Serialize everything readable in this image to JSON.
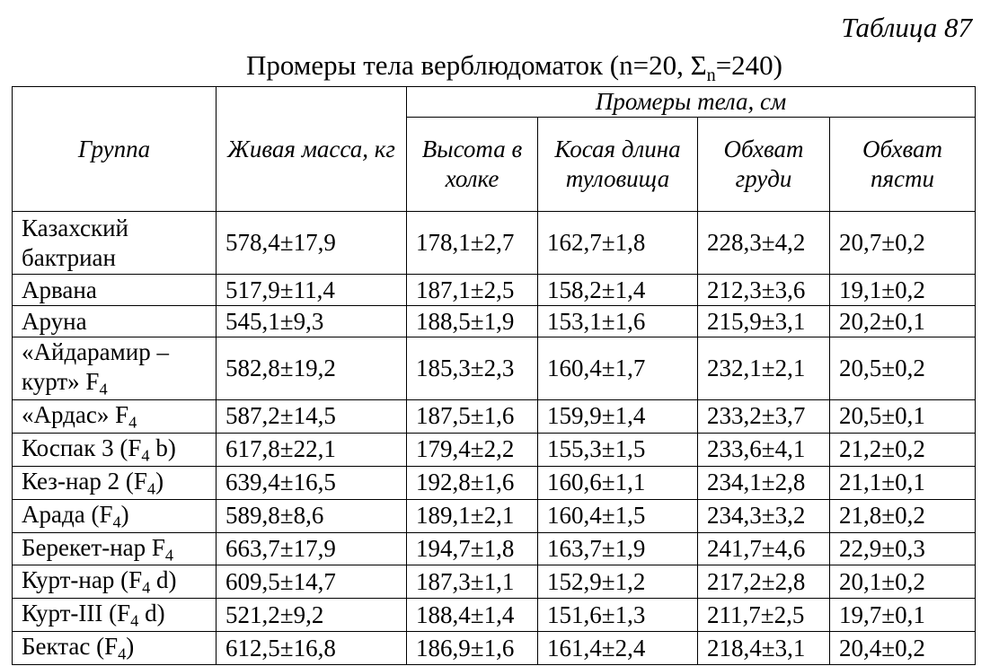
{
  "table_number": "Таблица 87",
  "title": {
    "text": "Промеры тела верблюдоматок (n=20, Σ",
    "sub": "n",
    "tail": "=240)"
  },
  "header": {
    "group": "Группа",
    "mass": "Живая масса, кг",
    "measures": "Промеры тела, см",
    "height": "Высота в холке",
    "length": "Косая длина туловища",
    "chest": "Обхват груди",
    "pastern": "Обхват пясти"
  },
  "rows": [
    {
      "group": "Казахский бактриан",
      "sub": "",
      "tail": "",
      "mass": "578,4±17,9",
      "height": "178,1±2,7",
      "length": "162,7±1,8",
      "chest": "228,3±4,2",
      "pastern": "20,7±0,2"
    },
    {
      "group": "Арвана",
      "sub": "",
      "tail": "",
      "mass": "517,9±11,4",
      "height": "187,1±2,5",
      "length": "158,2±1,4",
      "chest": "212,3±3,6",
      "pastern": "19,1±0,2"
    },
    {
      "group": "Аруна",
      "sub": "",
      "tail": "",
      "mass": "545,1±9,3",
      "height": "188,5±1,9",
      "length": "153,1±1,6",
      "chest": "215,9±3,1",
      "pastern": "20,2±0,1"
    },
    {
      "group": "«Айдарамир – курт» F",
      "sub": "4",
      "tail": "",
      "mass": "582,8±19,2",
      "height": "185,3±2,3",
      "length": "160,4±1,7",
      "chest": "232,1±2,1",
      "pastern": "20,5±0,2"
    },
    {
      "group": "«Ардас» F",
      "sub": "4",
      "tail": "",
      "mass": "587,2±14,5",
      "height": "187,5±1,6",
      "length": "159,9±1,4",
      "chest": "233,2±3,7",
      "pastern": "20,5±0,1"
    },
    {
      "group": "Коспак 3 (F",
      "sub": "4",
      "tail": " b)",
      "mass": "617,8±22,1",
      "height": "179,4±2,2",
      "length": "155,3±1,5",
      "chest": "233,6±4,1",
      "pastern": "21,2±0,2"
    },
    {
      "group": "Кез-нар 2 (F",
      "sub": "4",
      "tail": ")",
      "mass": "639,4±16,5",
      "height": "192,8±1,6",
      "length": "160,6±1,1",
      "chest": "234,1±2,8",
      "pastern": "21,1±0,1"
    },
    {
      "group": "Арада (F",
      "sub": "4",
      "tail": ")",
      "mass": "589,8±8,6",
      "height": "189,1±2,1",
      "length": "160,4±1,5",
      "chest": "234,3±3,2",
      "pastern": "21,8±0,2"
    },
    {
      "group": "Берекет-нар F",
      "sub": "4",
      "tail": "",
      "mass": "663,7±17,9",
      "height": "194,7±1,8",
      "length": "163,7±1,9",
      "chest": "241,7±4,6",
      "pastern": "22,9±0,3"
    },
    {
      "group": "Курт-нар (F",
      "sub": "4",
      "tail": " d)",
      "mass": "609,5±14,7",
      "height": "187,3±1,1",
      "length": "152,9±1,2",
      "chest": "217,2±2,8",
      "pastern": "20,1±0,2"
    },
    {
      "group": "Курт-III (F",
      "sub": "4",
      "tail": " d)",
      "mass": "521,2±9,2",
      "height": "188,4±1,4",
      "length": "151,6±1,3",
      "chest": "211,7±2,5",
      "pastern": "19,7±0,1"
    },
    {
      "group": "Бектас (F",
      "sub": "4",
      "tail": ")",
      "mass": "612,5±16,8",
      "height": "186,9±1,6",
      "length": "161,4±2,4",
      "chest": "218,4±3,1",
      "pastern": "20,4±0,2"
    }
  ]
}
